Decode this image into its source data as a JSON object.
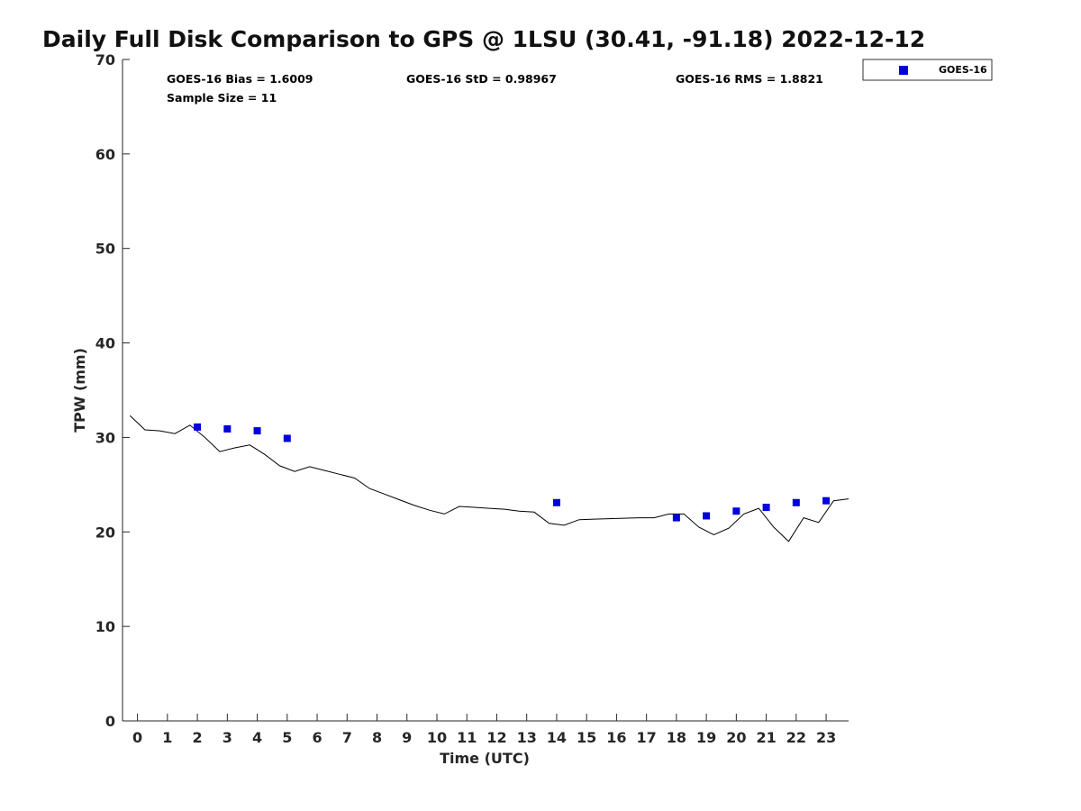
{
  "chart_data": {
    "type": "scatter",
    "title": "Daily Full Disk Comparison to GPS @ 1LSU (30.41, -91.18) 2022-12-12",
    "xlabel": "Time (UTC)",
    "ylabel": "TPW (mm)",
    "xlim": [
      -0.5,
      23.75
    ],
    "ylim": [
      0,
      70
    ],
    "x_ticks": [
      "0",
      "1",
      "2",
      "3",
      "4",
      "5",
      "6",
      "7",
      "8",
      "9",
      "10",
      "11",
      "12",
      "13",
      "14",
      "15",
      "16",
      "17",
      "18",
      "19",
      "20",
      "21",
      "22",
      "23"
    ],
    "y_ticks": [
      "0",
      "10",
      "20",
      "30",
      "40",
      "50",
      "60",
      "70"
    ],
    "grid": false,
    "legend": {
      "position": "top-right",
      "entries": [
        "GOES-16"
      ]
    },
    "stats": {
      "bias": "GOES-16 Bias = 1.6009",
      "std": "GOES-16 StD = 0.98967",
      "rms": "GOES-16 RMS = 1.8821",
      "sample": "Sample Size = 11"
    },
    "colors": {
      "goes": "#0000dd",
      "gps_line": "#000000"
    },
    "series": [
      {
        "name": "GOES-16",
        "kind": "scatter",
        "x": [
          2,
          3,
          4,
          5,
          14,
          18,
          19,
          20,
          21,
          22,
          23
        ],
        "y": [
          31.1,
          30.9,
          30.7,
          29.9,
          23.1,
          21.5,
          21.7,
          22.2,
          22.6,
          23.1,
          23.3
        ]
      },
      {
        "kind": "line",
        "x": [
          -0.25,
          0.25,
          0.75,
          1.25,
          1.75,
          2.25,
          2.75,
          3.25,
          3.75,
          4.25,
          4.75,
          5.25,
          5.75,
          6.25,
          6.75,
          7.25,
          7.75,
          8.25,
          8.75,
          9.25,
          9.75,
          10.25,
          10.75,
          11.25,
          11.75,
          12.25,
          12.75,
          13.25,
          13.75,
          14.25,
          14.75,
          15.25,
          15.75,
          16.25,
          16.75,
          17.25,
          17.75,
          18.25,
          18.75,
          19.25,
          19.75,
          20.25,
          20.75,
          21.25,
          21.75,
          22.25,
          22.75,
          23.25,
          23.75
        ],
        "y": [
          32.3,
          30.8,
          30.7,
          30.4,
          31.3,
          30.0,
          28.5,
          28.9,
          29.2,
          28.2,
          27.0,
          26.4,
          26.9,
          26.5,
          26.1,
          25.7,
          24.6,
          24.0,
          23.4,
          22.8,
          22.3,
          21.9,
          22.7,
          22.6,
          22.5,
          22.4,
          22.2,
          22.1,
          20.9,
          20.7,
          21.3,
          21.35,
          21.4,
          21.45,
          21.5,
          21.5,
          21.9,
          21.9,
          20.5,
          19.7,
          20.4,
          21.9,
          22.5,
          20.5,
          19.0,
          21.5,
          21.0,
          23.3,
          23.5
        ]
      }
    ]
  }
}
